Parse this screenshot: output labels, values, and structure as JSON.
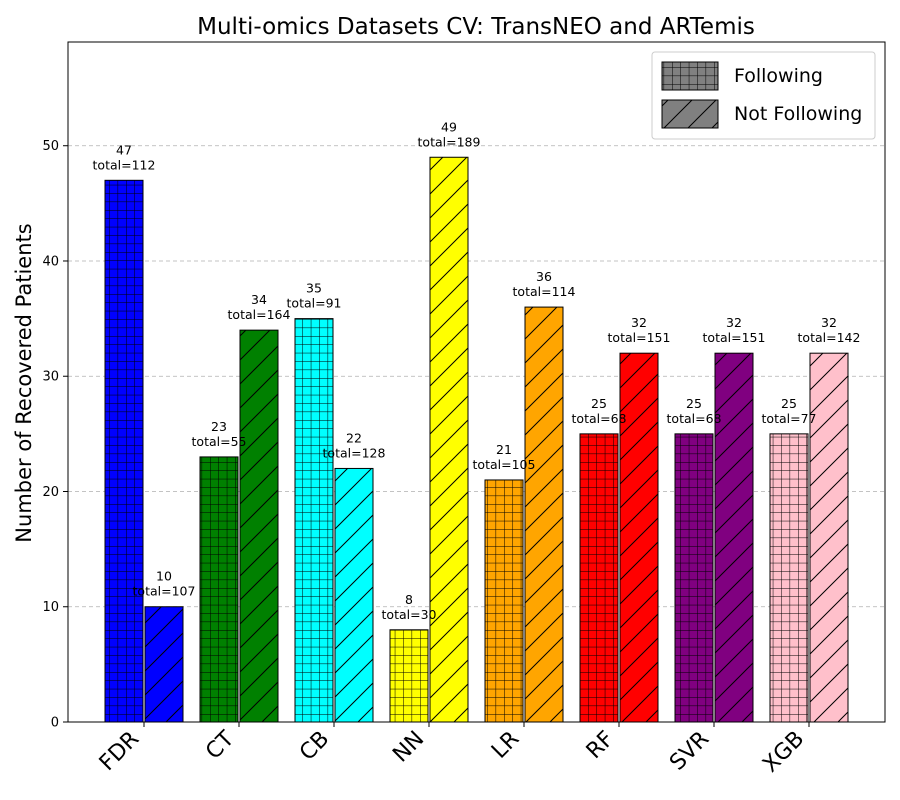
{
  "chart_data": {
    "type": "bar",
    "title": "Multi-omics Datasets CV: TransNEO and ARTemis",
    "xlabel": "",
    "ylabel": "Number of Recovered Patients",
    "ylim": [
      0,
      59
    ],
    "yticks": [
      0,
      10,
      20,
      30,
      40,
      50
    ],
    "grid": "y-dashed",
    "legend_position": "top-right",
    "categories": [
      "FDR",
      "CT",
      "CB",
      "NN",
      "LR",
      "RF",
      "SVR",
      "XGB"
    ],
    "colors": [
      "#0000ff",
      "#008000",
      "#00ffff",
      "#ffff00",
      "#ffa500",
      "#ff0000",
      "#800080",
      "#ffc0cb"
    ],
    "series": [
      {
        "name": "Following",
        "hatch": "grid",
        "values": [
          47,
          23,
          35,
          8,
          21,
          25,
          25,
          25
        ],
        "totals": [
          "total=112",
          "total=55",
          "total=91",
          "total=30",
          "total=105",
          "total=68",
          "total=68",
          "total=77"
        ]
      },
      {
        "name": "Not Following",
        "hatch": "diagonal",
        "values": [
          10,
          34,
          22,
          49,
          36,
          32,
          32,
          32
        ],
        "totals": [
          "total=107",
          "total=164",
          "total=128",
          "total=189",
          "total=114",
          "total=151",
          "total=151",
          "total=142"
        ]
      }
    ]
  }
}
